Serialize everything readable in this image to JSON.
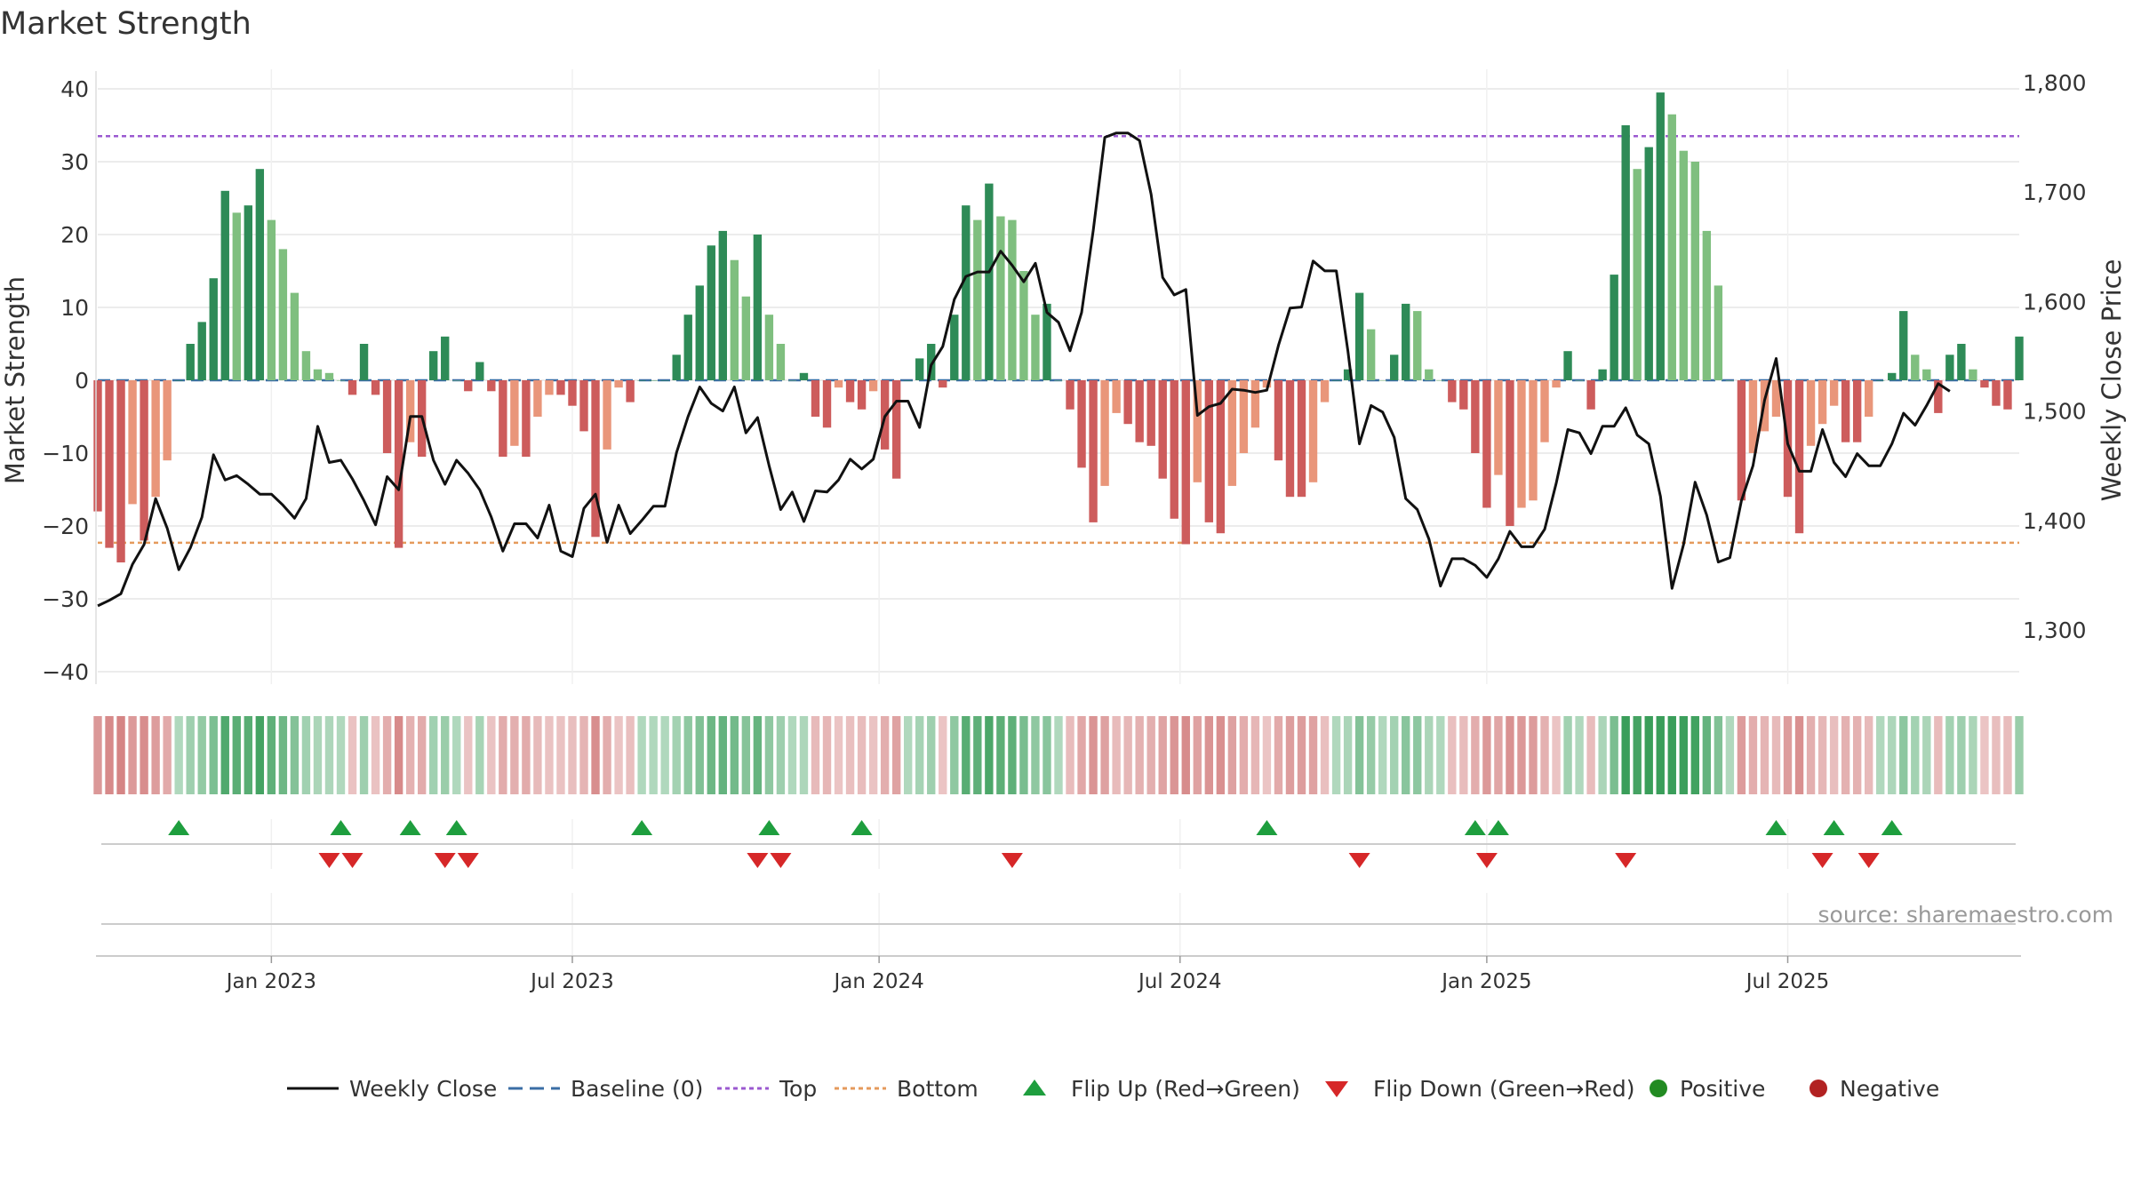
{
  "chart_data": {
    "type": "bar+line",
    "title": "Market Strength",
    "source": "source: sharemaestro.com",
    "ylabel_left": "Market Strength",
    "ylabel_right": "Weekly Close Price",
    "ylim_left": [
      -42,
      42
    ],
    "ylim_right": [
      1265,
      1800
    ],
    "yticks_left": [
      "40",
      "30",
      "20",
      "10",
      "0",
      "−10",
      "−20",
      "−30",
      "−40"
    ],
    "ytick_values_left": [
      40,
      30,
      20,
      10,
      0,
      -10,
      -20,
      -30,
      -40
    ],
    "yticks_right": [
      "1,800",
      "1,700",
      "1,600",
      "1,500",
      "1,400",
      "1,300"
    ],
    "ytick_values_right": [
      1800,
      1700,
      1600,
      1500,
      1400,
      1300
    ],
    "top_level": 33.5,
    "bottom_level": -22.3,
    "x_tick_labels": [
      "Jan 2023",
      "Jul 2023",
      "Jan 2024",
      "Jul 2024",
      "Jan 2025",
      "Jul 2025"
    ],
    "x_tick_weeks": [
      15,
      41,
      67.5,
      93.5,
      120,
      146
    ],
    "strength": [
      -18,
      -23,
      -25,
      -17,
      -22,
      -16,
      -11,
      0,
      5,
      8,
      14,
      26,
      23,
      24,
      29,
      22,
      18,
      12,
      4,
      1.5,
      1,
      0,
      -2,
      5,
      -2,
      -10,
      -23,
      -8.5,
      -10.5,
      4,
      6,
      0,
      -1.5,
      2.5,
      -1.5,
      -10.5,
      -9,
      -10.5,
      -5,
      -2,
      -2,
      -3.5,
      -7,
      -21.5,
      -9.5,
      -1,
      -3,
      0,
      0,
      0,
      3.5,
      9,
      13,
      18.5,
      20.5,
      16.5,
      11.5,
      20,
      9,
      5,
      0,
      1,
      -5,
      -6.5,
      -1,
      -3,
      -4,
      -1.5,
      -9.5,
      -13.5,
      0,
      3,
      5,
      -1,
      9,
      24,
      22,
      27,
      22.5,
      22,
      15,
      9,
      10.5,
      0,
      -4,
      -12,
      -19.5,
      -14.5,
      -4.5,
      -6,
      -8.5,
      -9,
      -13.5,
      -19,
      -22.5,
      -14,
      -19.5,
      -21,
      -14.5,
      -10,
      -6.5,
      -1,
      -11,
      -16,
      -16,
      -14,
      -3,
      0,
      1.5,
      12,
      7,
      0,
      3.5,
      10.5,
      9.5,
      1.5,
      0,
      -3,
      -4,
      -10,
      -17.5,
      -13,
      -20,
      -17.5,
      -16.5,
      -8.5,
      -1,
      4,
      0,
      -4,
      1.5,
      14.5,
      35,
      29,
      32,
      39.5,
      36.5,
      31.5,
      30,
      20.5,
      13,
      0,
      -16.5,
      -10,
      -7,
      -5,
      -16,
      -21,
      -9,
      -6,
      -3.5,
      -8.5,
      -8.5,
      -5,
      0,
      1,
      9.5,
      3.5,
      1.5,
      -4.5,
      3.5,
      5,
      1.5,
      -1,
      -3.5,
      -4,
      6
    ],
    "weekly_close": [
      1322,
      1327,
      1333,
      1360,
      1378,
      1420,
      1393,
      1355,
      1375,
      1403,
      1460,
      1437,
      1441,
      1433,
      1424,
      1424,
      1414,
      1402,
      1420,
      1486,
      1453,
      1455,
      1438,
      1418,
      1396,
      1440,
      1428,
      1495,
      1495,
      1455,
      1433,
      1455,
      1443,
      1428,
      1403,
      1372,
      1397,
      1397,
      1384,
      1414,
      1372,
      1367,
      1411,
      1424,
      1380,
      1414,
      1388,
      1400,
      1413,
      1413,
      1462,
      1495,
      1522,
      1507,
      1500,
      1522,
      1480,
      1494,
      1450,
      1410,
      1426,
      1399,
      1427,
      1426,
      1437,
      1456,
      1447,
      1456,
      1495,
      1509,
      1509,
      1485,
      1542,
      1559,
      1602,
      1623,
      1627,
      1627,
      1646,
      1633,
      1618,
      1635,
      1590,
      1581,
      1555,
      1590,
      1665,
      1750,
      1754,
      1754,
      1747,
      1698,
      1622,
      1606,
      1611,
      1496,
      1504,
      1507,
      1520,
      1519,
      1517,
      1519,
      1560,
      1594,
      1595,
      1637,
      1628,
      1628,
      1555,
      1470,
      1505,
      1499,
      1476,
      1420,
      1410,
      1383,
      1340,
      1365,
      1365,
      1359,
      1348,
      1365,
      1390,
      1376,
      1376,
      1392,
      1434,
      1483,
      1480,
      1461,
      1486,
      1486,
      1503,
      1478,
      1470,
      1422,
      1338,
      1378,
      1435,
      1405,
      1362,
      1366,
      1418,
      1450,
      1510,
      1548,
      1470,
      1445,
      1445,
      1483,
      1453,
      1440,
      1461,
      1450,
      1450,
      1470,
      1498,
      1487,
      1505,
      1525,
      1518
    ],
    "flip_up_weeks": [
      7,
      21,
      27,
      31,
      47,
      58,
      66,
      101,
      119,
      121,
      145,
      150,
      155
    ],
    "flip_down_weeks": [
      20,
      22,
      30,
      32,
      57,
      59,
      79,
      109,
      120,
      132,
      149,
      153
    ],
    "legend": [
      "Weekly Close",
      "Baseline (0)",
      "Top",
      "Bottom",
      "Flip Up (Red→Green)",
      "Flip Down (Green→Red)",
      "Positive",
      "Negative"
    ],
    "colors": {
      "line": "#111111",
      "baseline": "#3b6ea5",
      "top": "#9b59d0",
      "bottom": "#e59a5c",
      "bar_pos_strong": "#2e8b57",
      "bar_pos_weak": "#7fbf7f",
      "bar_neg_strong": "#cd5c5c",
      "bar_neg_weak": "#e9967a",
      "flip_up": "#1e9e3e",
      "flip_down": "#d62728",
      "positive": "#228b22",
      "negative": "#b22222",
      "grid": "#e6e6e6",
      "text": "#333333"
    }
  }
}
